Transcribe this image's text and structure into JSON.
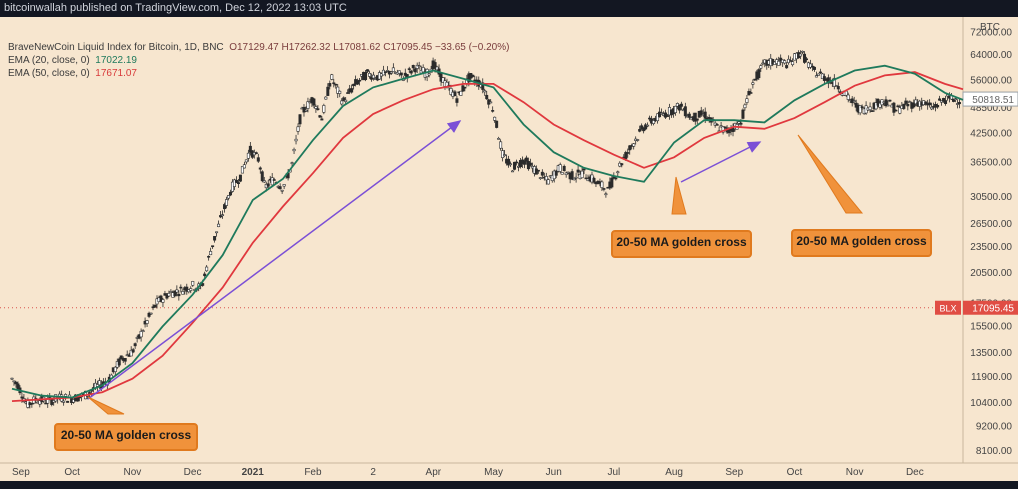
{
  "header": {
    "publisher_line": "bitcoinwallah published on TradingView.com, Dec 12, 2022 13:03 UTC"
  },
  "legend": {
    "symbol_line": "BraveNewCoin Liquid Index for Bitcoin, 1D, BNC",
    "ohlc": "O17129.47 H17262.32 L17081.62 C17095.45 −33.65 (−0.20%)",
    "ema20_label": "EMA (20, close, 0)",
    "ema20_value": "17022.19",
    "ema50_label": "EMA (50, close, 0)",
    "ema50_value": "17671.07"
  },
  "annotations": {
    "callout_1": "20-50 MA golden cross",
    "callout_2": "20-50 MA golden cross",
    "callout_3": "20-50 MA golden cross"
  },
  "colors": {
    "background": "#f7e6cf",
    "ema20": "#1f7a5c",
    "ema50": "#e0383e",
    "arrow": "#7b4fd6",
    "callout_fill": "#f0923b",
    "price_line": "#d9534f",
    "candles": "#2b2b2b"
  },
  "chart_data": {
    "type": "line",
    "title": "",
    "scale": "log",
    "price_axis_unit": "BTC",
    "y_ticks": [
      72000,
      64000,
      56000,
      48500,
      42500,
      36500,
      30500,
      26500,
      23500,
      20500,
      17500,
      15500,
      13500,
      11900,
      10400,
      9200,
      8100
    ],
    "y_tick_labels": [
      "72000.00",
      "64000.00",
      "56000.00",
      "48500.00",
      "42500.00",
      "36500.00",
      "30500.00",
      "26500.00",
      "23500.00",
      "20500.00",
      "17500.00",
      "15500.00",
      "13500.00",
      "11900.00",
      "10400.00",
      "9200.00",
      "8100.00"
    ],
    "ylim": [
      7600,
      78000
    ],
    "x_labels": [
      "Sep",
      "Oct",
      "Nov",
      "Dec",
      "2021",
      "Feb",
      "2",
      "Apr",
      "May",
      "Jun",
      "Jul",
      "Aug",
      "Sep",
      "Oct",
      "Nov",
      "Dec"
    ],
    "x_label_positions_months": [
      0,
      1,
      2,
      3,
      4,
      5,
      6,
      7,
      8,
      9,
      10,
      11,
      12,
      13,
      14,
      15
    ],
    "xlim_months": [
      0,
      15.8
    ],
    "last_price": {
      "label": "BLX",
      "value": 17095.45,
      "text": "17095.45"
    },
    "current_price": {
      "value": 50818.51,
      "text": "50818.51"
    },
    "series": [
      {
        "name": "Price",
        "x_months": [
          0,
          0.1,
          0.25,
          0.4,
          0.6,
          0.8,
          1.0,
          1.2,
          1.4,
          1.6,
          1.8,
          2.0,
          2.2,
          2.4,
          2.6,
          2.8,
          3.0,
          3.15,
          3.3,
          3.5,
          3.65,
          3.8,
          3.95,
          4.1,
          4.2,
          4.35,
          4.5,
          4.65,
          4.8,
          5.0,
          5.15,
          5.3,
          5.5,
          5.7,
          5.9,
          6.1,
          6.3,
          6.5,
          6.7,
          6.9,
          7.0,
          7.2,
          7.4,
          7.6,
          7.8,
          8.0,
          8.15,
          8.3,
          8.5,
          8.7,
          8.9,
          9.1,
          9.3,
          9.5,
          9.7,
          9.9,
          10.1,
          10.3,
          10.5,
          10.7,
          10.9,
          11.1,
          11.3,
          11.5,
          11.7,
          11.9,
          12.1,
          12.3,
          12.5,
          12.7,
          12.9,
          13.1,
          13.3,
          13.5,
          13.7,
          13.9,
          14.1,
          14.3,
          14.5,
          14.7,
          14.9,
          15.1,
          15.3,
          15.5,
          15.7
        ],
        "values": [
          11800,
          11400,
          10300,
          10600,
          10500,
          10700,
          10650,
          10800,
          11300,
          11700,
          13000,
          13600,
          15500,
          17500,
          18400,
          18700,
          19200,
          19000,
          23000,
          28000,
          32000,
          34000,
          39000,
          37000,
          32000,
          33500,
          32000,
          36000,
          47000,
          51000,
          46000,
          57000,
          50000,
          55000,
          58000,
          57000,
          59000,
          57000,
          60000,
          58000,
          61000,
          55000,
          51000,
          57000,
          55000,
          48000,
          38000,
          35500,
          37000,
          35000,
          33000,
          35500,
          34000,
          34500,
          33000,
          31500,
          36000,
          40000,
          44000,
          46000,
          47500,
          49000,
          46000,
          47000,
          44000,
          43000,
          45000,
          55000,
          61000,
          62000,
          61000,
          65000,
          59000,
          57000,
          55000,
          51000,
          48000,
          49000,
          50500,
          48000,
          49500,
          50000,
          48500,
          50818,
          50818
        ]
      },
      {
        "name": "EMA (20, close, 0)",
        "x_months": [
          0,
          0.5,
          1.0,
          1.5,
          2.0,
          2.5,
          3.0,
          3.5,
          4.0,
          4.5,
          5.0,
          5.5,
          6.0,
          6.5,
          7.0,
          7.5,
          8.0,
          8.5,
          9.0,
          9.5,
          10.0,
          10.5,
          11.0,
          11.5,
          12.0,
          12.5,
          13.0,
          13.5,
          14.0,
          14.5,
          15.0,
          15.5,
          15.8
        ],
        "values": [
          11200,
          10800,
          10700,
          11400,
          12800,
          15500,
          18300,
          22500,
          30000,
          33500,
          41000,
          49000,
          54000,
          56500,
          59000,
          56500,
          54000,
          44500,
          38500,
          35500,
          34000,
          33000,
          40500,
          45500,
          45500,
          45000,
          50500,
          55000,
          59000,
          60500,
          58000,
          52500,
          50600
        ]
      },
      {
        "name": "EMA (50, close, 0)",
        "x_months": [
          0,
          0.5,
          1.0,
          1.5,
          2.0,
          2.5,
          3.0,
          3.5,
          4.0,
          4.5,
          5.0,
          5.5,
          6.0,
          6.5,
          7.0,
          7.5,
          8.0,
          8.5,
          9.0,
          9.5,
          10.0,
          10.5,
          11.0,
          11.5,
          12.0,
          12.5,
          13.0,
          13.5,
          14.0,
          14.5,
          15.0,
          15.5,
          15.8
        ],
        "values": [
          10500,
          10600,
          10700,
          11000,
          11800,
          13300,
          15800,
          19000,
          24000,
          29000,
          34500,
          41500,
          47000,
          50500,
          53500,
          55000,
          55000,
          50000,
          44500,
          41000,
          38000,
          35500,
          37500,
          41500,
          44000,
          43500,
          46000,
          50000,
          54500,
          57500,
          58500,
          55000,
          53500
        ]
      }
    ]
  }
}
